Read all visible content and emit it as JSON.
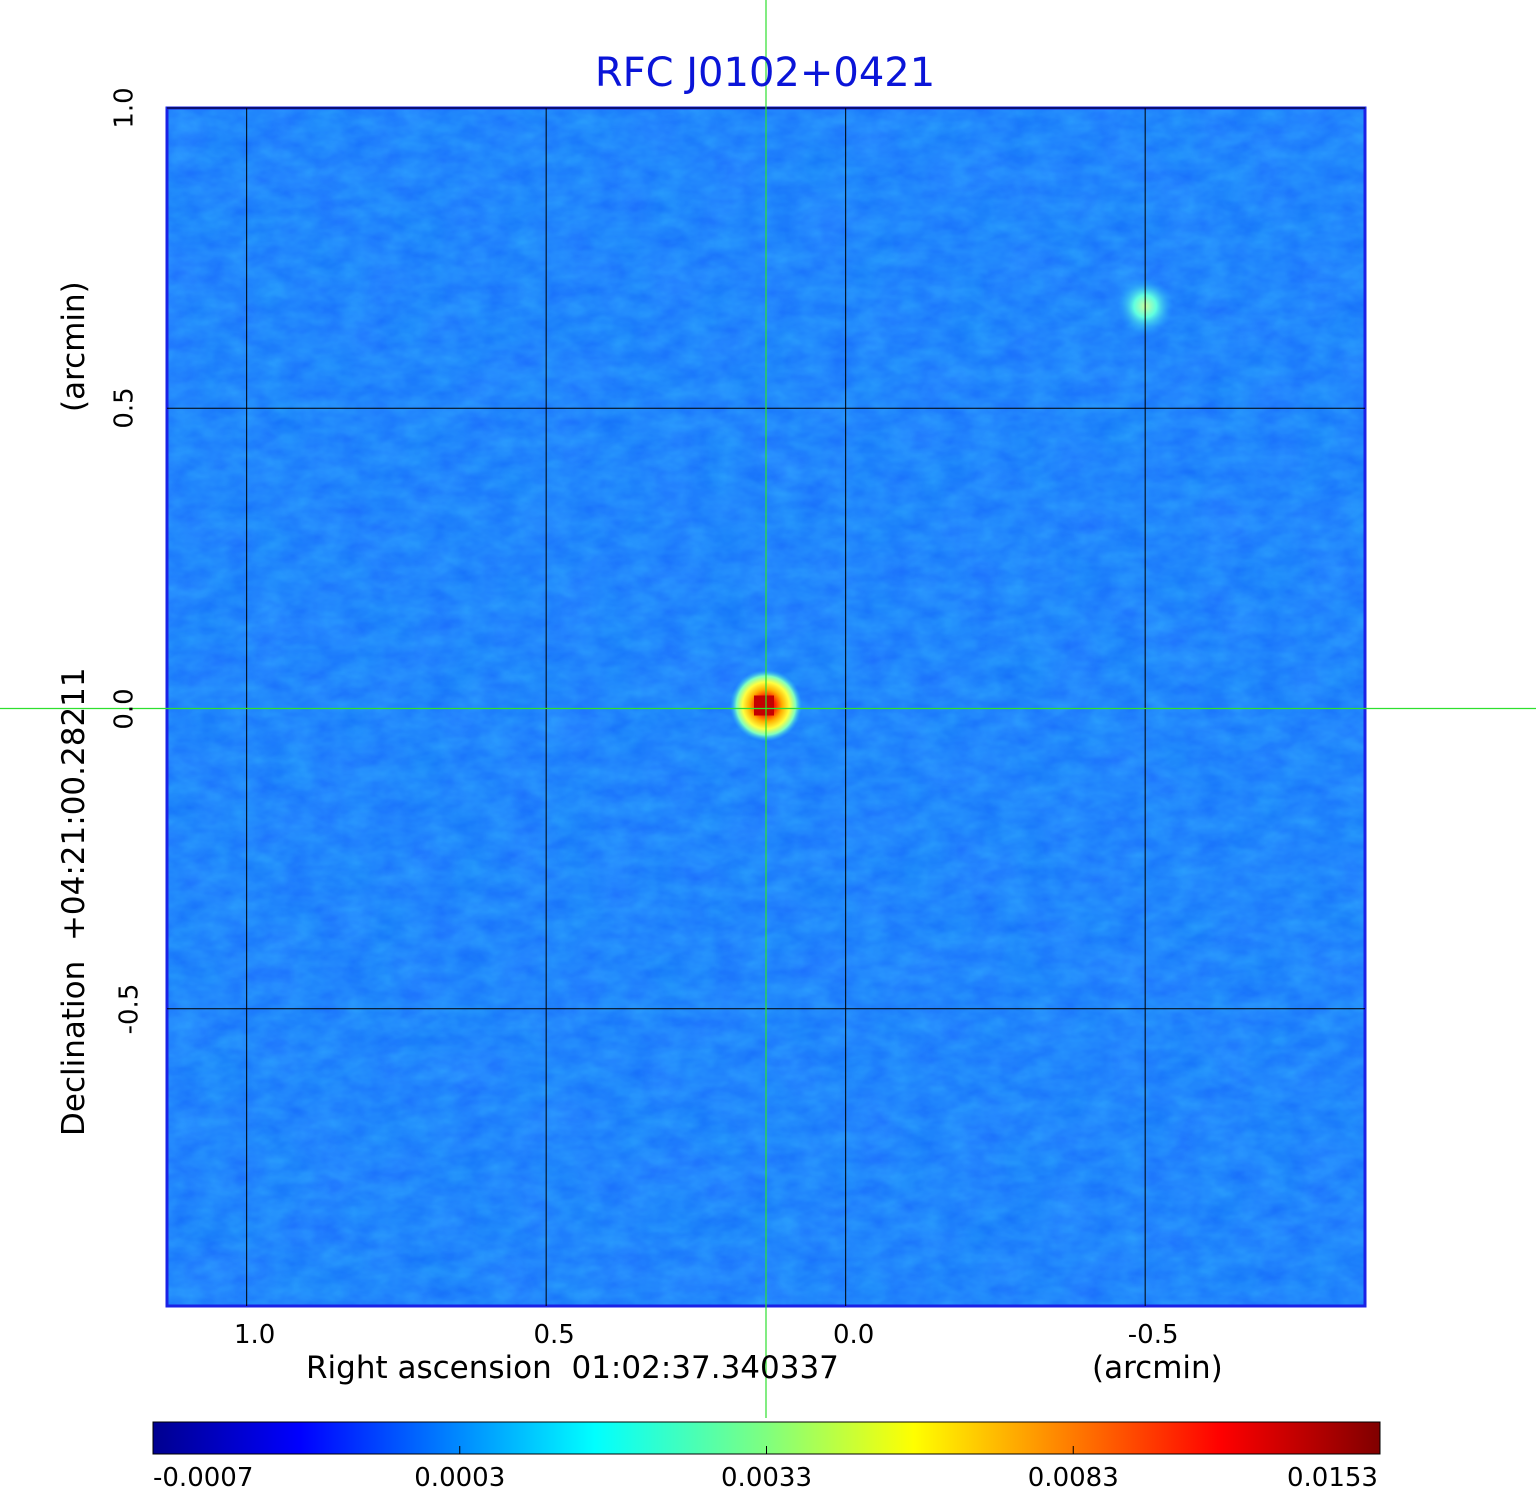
{
  "chart_data": {
    "type": "heatmap",
    "title": "RFC J0102+0421",
    "title_color": "#0a14d8",
    "x_axis": {
      "label": "Right ascension  01:02:37.340337",
      "unit_label": "(arcmin)",
      "ticks": [
        1.0,
        0.5,
        0.0,
        -0.5
      ],
      "tick_labels": [
        "1.0",
        "0.5",
        "0.0",
        "-0.5"
      ],
      "range": [
        1.133,
        -0.867
      ],
      "grid": true
    },
    "y_axis": {
      "label": "Declination  +04:21:00.28211",
      "unit_label": "(arcmin)",
      "ticks": [
        1.0,
        0.5,
        0.0,
        -0.5
      ],
      "tick_labels": [
        "1.0",
        "0.5",
        "0.0",
        "-0.5"
      ],
      "range": [
        -0.995,
        1.0
      ],
      "grid": true
    },
    "colorbar": {
      "colormap": "jet",
      "tick_labels": [
        "-0.0007",
        "0.0003",
        "0.0033",
        "0.0083",
        "0.0153"
      ],
      "range": [
        -0.0007,
        0.0153
      ]
    },
    "crosshair": {
      "x": 0.133,
      "y": 0.0,
      "color": "#2ee02e"
    },
    "sources": [
      {
        "x": 0.133,
        "y": 0.005,
        "peak": 0.0153
      },
      {
        "x": -0.5,
        "y": 0.67,
        "peak": 0.0033
      }
    ],
    "background_level": 0.0003,
    "colors": {
      "frame": "#1a22e6",
      "grid": "#000000"
    }
  }
}
